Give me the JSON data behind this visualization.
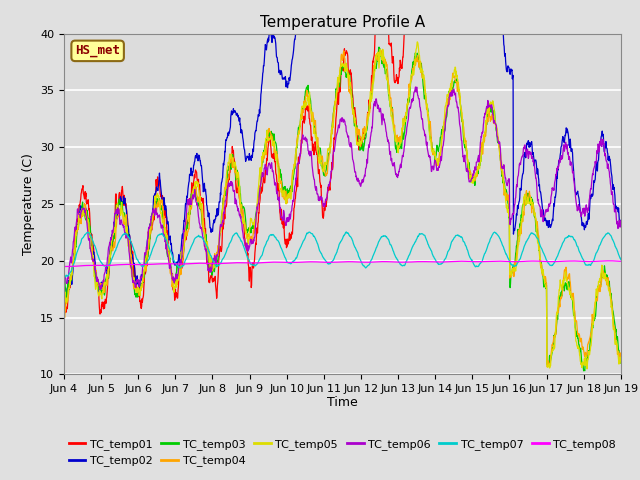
{
  "title": "Temperature Profile A",
  "xlabel": "Time",
  "ylabel": "Temperature (C)",
  "ylim": [
    10,
    40
  ],
  "yticks": [
    10,
    15,
    20,
    25,
    30,
    35,
    40
  ],
  "date_labels": [
    "Jun 4",
    "Jun 5",
    "Jun 6",
    "Jun 7",
    "Jun 8",
    "Jun 9",
    "Jun 10",
    "Jun 11",
    "Jun 12",
    "Jun 13",
    "Jun 14",
    "Jun 15",
    "Jun 16",
    "Jun 17",
    "Jun 18",
    "Jun 19"
  ],
  "annotation_text": "HS_met",
  "annotation_color": "#8B0000",
  "annotation_bg": "#FFFF99",
  "annotation_border": "#8B6914",
  "series_colors": {
    "TC_temp01": "#FF0000",
    "TC_temp02": "#0000CD",
    "TC_temp03": "#00CC00",
    "TC_temp04": "#FFA500",
    "TC_temp05": "#DDDD00",
    "TC_temp06": "#AA00CC",
    "TC_temp07": "#00CCCC",
    "TC_temp08": "#FF00FF"
  },
  "legend_order": [
    "TC_temp01",
    "TC_temp02",
    "TC_temp03",
    "TC_temp04",
    "TC_temp05",
    "TC_temp06",
    "TC_temp07",
    "TC_temp08"
  ],
  "fig_bg": "#E0E0E0",
  "plot_bg": "#DCDCDC",
  "grid_color": "#FFFFFF",
  "figsize": [
    6.4,
    4.8
  ],
  "dpi": 100
}
